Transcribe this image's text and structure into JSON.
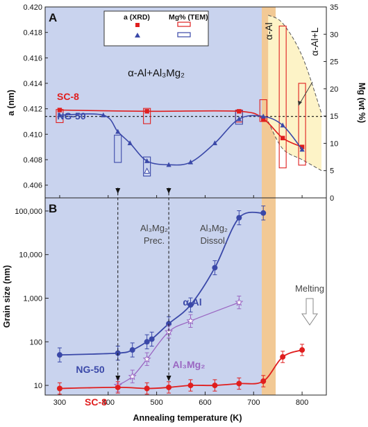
{
  "chart_data": [
    {
      "panel": "A",
      "type": "scatter",
      "xlabel": "Annealing temperature (K)",
      "ylabel": "a (nm)",
      "ylabel_right": "Mg (wt %)",
      "xlim": [
        270,
        850
      ],
      "ylim": [
        0.405,
        0.42
      ],
      "ylim_right": [
        0,
        35
      ],
      "xticks": [
        "300",
        "400",
        "500",
        "600",
        "700",
        "800"
      ],
      "yticks": [
        "0.406",
        "0.408",
        "0.410",
        "0.412",
        "0.414",
        "0.416",
        "0.418",
        "0.420"
      ],
      "yticks_right": [
        "0",
        "5",
        "10",
        "15",
        "20",
        "25",
        "30",
        "35"
      ],
      "legend": {
        "lattice": "a (XRD)",
        "mg": "Mg% (TEM)"
      },
      "region_labels": {
        "matrix": "α-Al+Al₃Mg₂",
        "alpha": "α-Al",
        "liquid": "α-Al+L"
      },
      "reference_line_a": 0.4114,
      "series": [
        {
          "name": "SC-8",
          "color": "#e01e1e",
          "marker": "square",
          "x": [
            300,
            480,
            670,
            720,
            760,
            800
          ],
          "y": [
            0.4119,
            0.4118,
            0.4118,
            0.4112,
            0.4097,
            0.409
          ]
        },
        {
          "name": "NG-50",
          "color": "#3a48a8",
          "marker": "triangle",
          "x": [
            300,
            390,
            420,
            445,
            480,
            525,
            570,
            620,
            670,
            720,
            760,
            800
          ],
          "y": [
            0.4115,
            0.4115,
            0.4102,
            0.4093,
            0.4079,
            0.4076,
            0.4078,
            0.4093,
            0.4112,
            0.4114,
            0.4107,
            0.4088
          ],
          "open_points": [
            {
              "x": 480,
              "y": 0.4071
            }
          ]
        }
      ],
      "mg_boxes": [
        {
          "series": "SC-8",
          "x": 300,
          "low": 13.8,
          "high": 16.2
        },
        {
          "series": "SC-8",
          "x": 480,
          "low": 13.6,
          "high": 16.4
        },
        {
          "series": "SC-8",
          "x": 670,
          "low": 13.9,
          "high": 16.1
        },
        {
          "series": "SC-8",
          "x": 720,
          "low": 14.0,
          "high": 18.0
        },
        {
          "series": "SC-8",
          "x": 760,
          "low": 5.5,
          "high": 31.5
        },
        {
          "series": "SC-8",
          "x": 800,
          "low": 6.0,
          "high": 21.0
        },
        {
          "series": "NG-50",
          "x": 420,
          "low": 6.5,
          "high": 11.5
        },
        {
          "series": "NG-50",
          "x": 480,
          "low": 4.0,
          "high": 7.5
        },
        {
          "series": "NG-50",
          "x": 670,
          "low": 13.5,
          "high": 16.0
        }
      ],
      "solvus_boundary": {
        "x": [
          730,
          760,
          800,
          840
        ],
        "y_upper": [
          33.5,
          32,
          26,
          15.5
        ],
        "y_lower": [
          14,
          9,
          7,
          5
        ]
      }
    },
    {
      "panel": "B",
      "type": "line",
      "xlabel": "Annealing temperature (K)",
      "ylabel": "Grain size (nm)",
      "yscale": "log",
      "xlim": [
        270,
        850
      ],
      "ylim": [
        6,
        200000
      ],
      "xticks": [
        "300",
        "400",
        "500",
        "600",
        "700",
        "800"
      ],
      "yticks": [
        "10",
        "100",
        "1,000",
        "10,000",
        "100,000"
      ],
      "ytick_values": [
        10,
        100,
        1000,
        10000,
        100000
      ],
      "annotations": {
        "precip": "Al₃Mg₂\nPrec.",
        "dissol": "Al₃Mg₂\nDissol.",
        "melting": "Melting"
      },
      "series": [
        {
          "name": "NG-50",
          "curve_label": "α-Al",
          "color": "#3a48a8",
          "marker": "circle",
          "x": [
            300,
            420,
            450,
            480,
            490,
            525,
            570,
            620,
            670,
            720
          ],
          "y": [
            50,
            55,
            65,
            100,
            115,
            260,
            700,
            5000,
            70000,
            90000
          ],
          "err_factor": 1.45
        },
        {
          "name": "Al₃Mg₂",
          "color": "#9a66c2",
          "marker": "star-open",
          "x": [
            420,
            450,
            480,
            525,
            570,
            670
          ],
          "y": [
            10,
            16,
            40,
            170,
            300,
            800
          ],
          "err_factor": 1.4
        },
        {
          "name": "SC-8",
          "color": "#e01e1e",
          "marker": "circle",
          "x": [
            300,
            420,
            480,
            525,
            570,
            620,
            670,
            720,
            760,
            800
          ],
          "y": [
            8.5,
            9,
            8.5,
            9,
            10,
            10,
            11,
            12.5,
            45,
            65
          ],
          "err_factor": 1.35
        }
      ]
    }
  ]
}
